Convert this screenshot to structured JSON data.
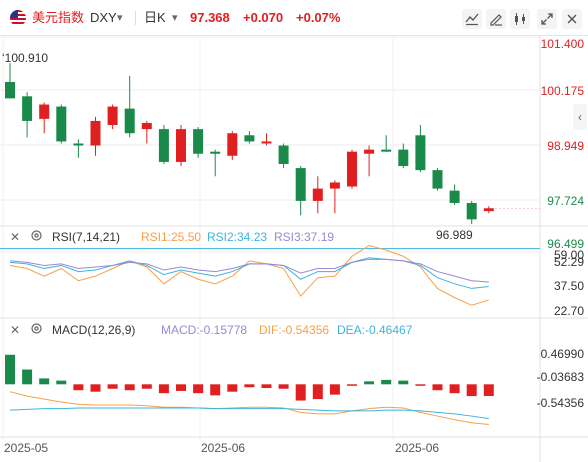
{
  "symbol": {
    "name": "美元指数",
    "ticker": "DXY",
    "dropdown": "▾",
    "period": "日K",
    "period_dropdown": "▾",
    "price": "97.368",
    "change": "+0.070",
    "change_pct": "+0.07%"
  },
  "toolbar_icons": [
    "indicator-icon",
    "draw-icon",
    "candle-style-icon",
    "fullscreen-icon",
    "close-icon"
  ],
  "colors": {
    "up": "#e02020",
    "down": "#1a8a4a",
    "rsi1": "#f5a04a",
    "rsi2": "#3cb4dc",
    "rsi3": "#9b87d6",
    "macd": "#9b87d6",
    "dif": "#f5a04a",
    "dea": "#3cb4dc",
    "price_up_text": "#e02020"
  },
  "main": {
    "high_label": "100.910",
    "low_label": "96.989",
    "y_ticks": [
      "101.400",
      "100.175",
      "98.949",
      "97.724",
      "96.499"
    ],
    "last_price_ticker": "97.368"
  },
  "rsi": {
    "title": "RSI(7,14,21)",
    "rsi1": "RSI1:25.50",
    "rsi2": "RSI2:34.23",
    "rsi3": "RSI3:37.19",
    "y_ticks": [
      "59.00",
      "52.29",
      "37.50",
      "22.70"
    ]
  },
  "macd": {
    "title": "MACD(12,26,9)",
    "macd": "MACD:-0.15778",
    "dif": "DIF:-0.54356",
    "dea": "DEA:-0.46467",
    "y_ticks": [
      "0.46990",
      "-0.03683",
      "-0.54356"
    ]
  },
  "dates": [
    "2025-05",
    "2025-06",
    "2025-06"
  ],
  "side_arrow": "‹",
  "chart_data": [
    {
      "type": "candlestick",
      "title": "DXY 日K",
      "ylim": [
        96.499,
        101.4
      ],
      "y_ticks": [
        101.4,
        100.175,
        98.949,
        97.724,
        96.499
      ],
      "candles": [
        {
          "o": 100.45,
          "h": 100.91,
          "l": 100.05,
          "c": 100.05
        },
        {
          "o": 100.1,
          "h": 100.2,
          "l": 99.1,
          "c": 99.5
        },
        {
          "o": 99.55,
          "h": 99.95,
          "l": 99.2,
          "c": 99.9
        },
        {
          "o": 99.85,
          "h": 99.9,
          "l": 98.95,
          "c": 99.0
        },
        {
          "o": 98.95,
          "h": 99.05,
          "l": 98.6,
          "c": 98.9
        },
        {
          "o": 98.9,
          "h": 99.6,
          "l": 98.65,
          "c": 99.5
        },
        {
          "o": 99.4,
          "h": 99.9,
          "l": 99.3,
          "c": 99.85
        },
        {
          "o": 99.8,
          "h": 100.6,
          "l": 99.1,
          "c": 99.2
        },
        {
          "o": 99.3,
          "h": 99.5,
          "l": 98.95,
          "c": 99.45
        },
        {
          "o": 99.3,
          "h": 99.4,
          "l": 98.45,
          "c": 98.5
        },
        {
          "o": 98.5,
          "h": 99.4,
          "l": 98.4,
          "c": 99.3
        },
        {
          "o": 99.3,
          "h": 99.35,
          "l": 98.6,
          "c": 98.7
        },
        {
          "o": 98.75,
          "h": 98.8,
          "l": 98.15,
          "c": 98.7
        },
        {
          "o": 98.65,
          "h": 99.25,
          "l": 98.55,
          "c": 99.2
        },
        {
          "o": 99.15,
          "h": 99.25,
          "l": 98.95,
          "c": 99.0
        },
        {
          "o": 98.95,
          "h": 99.2,
          "l": 98.9,
          "c": 99.0
        },
        {
          "o": 98.9,
          "h": 98.95,
          "l": 98.35,
          "c": 98.45
        },
        {
          "o": 98.35,
          "h": 98.4,
          "l": 97.2,
          "c": 97.55
        },
        {
          "o": 97.55,
          "h": 98.15,
          "l": 97.25,
          "c": 97.85
        },
        {
          "o": 97.85,
          "h": 98.05,
          "l": 97.25,
          "c": 98.0
        },
        {
          "o": 97.9,
          "h": 98.8,
          "l": 97.85,
          "c": 98.75
        },
        {
          "o": 98.7,
          "h": 98.9,
          "l": 98.15,
          "c": 98.8
        },
        {
          "o": 98.8,
          "h": 99.15,
          "l": 98.75,
          "c": 98.75
        },
        {
          "o": 98.8,
          "h": 98.95,
          "l": 98.35,
          "c": 98.4
        },
        {
          "o": 99.15,
          "h": 99.4,
          "l": 98.25,
          "c": 98.3
        },
        {
          "o": 98.3,
          "h": 98.35,
          "l": 97.8,
          "c": 97.85
        },
        {
          "o": 97.8,
          "h": 97.95,
          "l": 97.45,
          "c": 97.5
        },
        {
          "o": 97.5,
          "h": 97.55,
          "l": 96.99,
          "c": 97.1
        },
        {
          "o": 97.3,
          "h": 97.42,
          "l": 97.25,
          "c": 97.37
        }
      ]
    },
    {
      "type": "line",
      "title": "RSI(7,14,21)",
      "ylim": [
        15,
        62
      ],
      "series": [
        {
          "name": "RSI1",
          "values": [
            48,
            46,
            41,
            46,
            38,
            41,
            46,
            51,
            47,
            36,
            44,
            39,
            36,
            41,
            51,
            49,
            46,
            28,
            40,
            41,
            54,
            61,
            58,
            54,
            47,
            33,
            27,
            22,
            25.5
          ]
        },
        {
          "name": "RSI2",
          "values": [
            50,
            49,
            46,
            48,
            44,
            45,
            48,
            51,
            48,
            42,
            45,
            43,
            41,
            44,
            49,
            49,
            48,
            39,
            44,
            44,
            50,
            53,
            52,
            51,
            48,
            40,
            36,
            33,
            34.23
          ]
        },
        {
          "name": "RSI3",
          "values": [
            51,
            50,
            48,
            49,
            46,
            47,
            48,
            50,
            49,
            45,
            47,
            45,
            44,
            46,
            49,
            49,
            48,
            43,
            46,
            46,
            50,
            52,
            52,
            51,
            49,
            44,
            41,
            38,
            37.19
          ]
        }
      ]
    },
    {
      "type": "bar",
      "title": "MACD(12,26,9)",
      "ylim": [
        -0.7,
        0.6
      ],
      "series": [
        {
          "name": "MACD",
          "values": [
            0.4,
            0.2,
            0.08,
            0.05,
            -0.08,
            -0.1,
            -0.06,
            -0.08,
            -0.06,
            -0.12,
            -0.09,
            -0.12,
            -0.15,
            -0.1,
            -0.04,
            -0.05,
            -0.06,
            -0.22,
            -0.2,
            -0.14,
            -0.02,
            0.04,
            0.06,
            0.05,
            -0.02,
            -0.08,
            -0.12,
            -0.16,
            -0.158
          ]
        },
        {
          "name": "DIF",
          "values": [
            -0.1,
            -0.16,
            -0.2,
            -0.24,
            -0.27,
            -0.28,
            -0.28,
            -0.28,
            -0.29,
            -0.31,
            -0.31,
            -0.32,
            -0.33,
            -0.32,
            -0.31,
            -0.31,
            -0.32,
            -0.38,
            -0.4,
            -0.4,
            -0.36,
            -0.33,
            -0.31,
            -0.32,
            -0.38,
            -0.43,
            -0.48,
            -0.52,
            -0.5436
          ]
        },
        {
          "name": "DEA",
          "values": [
            -0.35,
            -0.34,
            -0.33,
            -0.33,
            -0.32,
            -0.32,
            -0.32,
            -0.32,
            -0.32,
            -0.32,
            -0.32,
            -0.32,
            -0.33,
            -0.33,
            -0.33,
            -0.33,
            -0.33,
            -0.34,
            -0.35,
            -0.36,
            -0.36,
            -0.36,
            -0.35,
            -0.35,
            -0.36,
            -0.38,
            -0.4,
            -0.43,
            -0.4647
          ]
        }
      ]
    }
  ]
}
